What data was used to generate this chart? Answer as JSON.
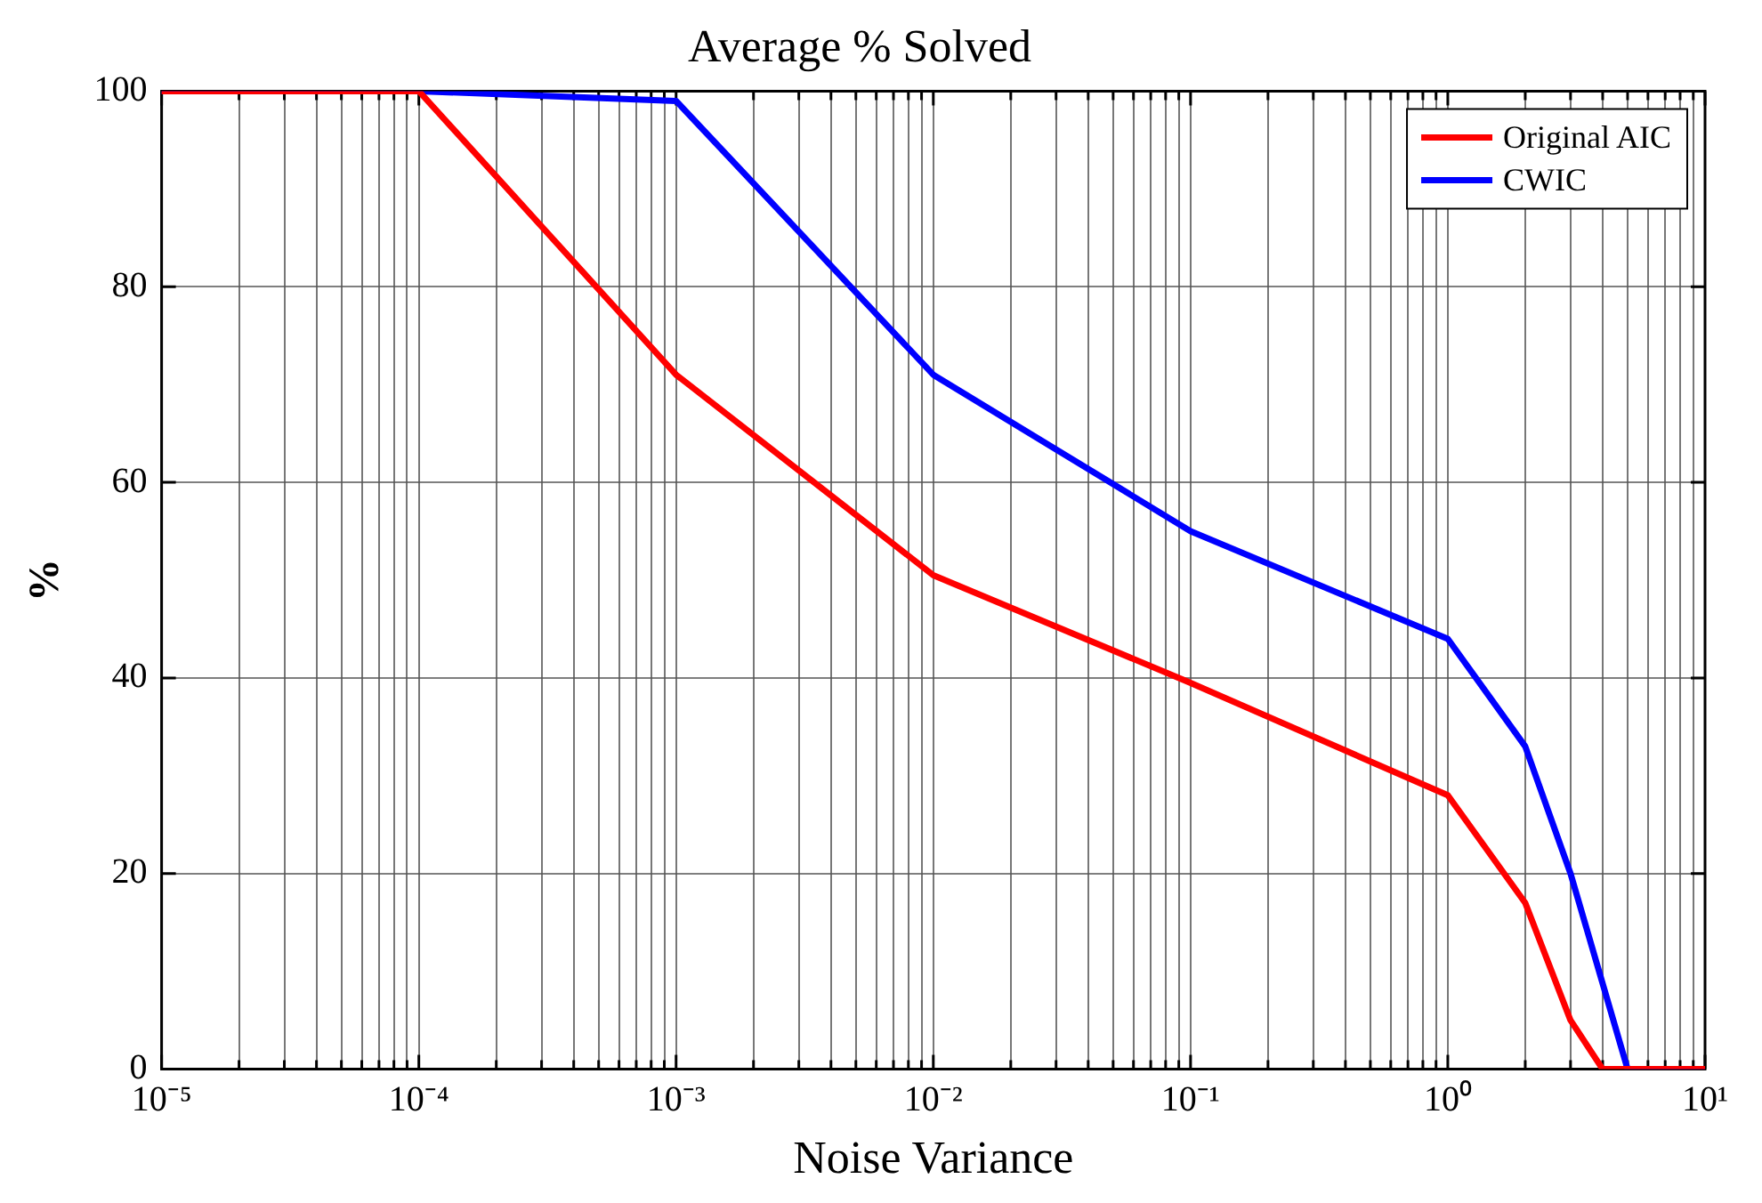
{
  "chart_data": {
    "type": "line",
    "title": "Average % Solved",
    "xlabel": "Noise Variance",
    "ylabel": "%",
    "log": "x",
    "grid": true,
    "legend": "top right",
    "marker": "none",
    "line_style": "solid",
    "xlim": [
      1e-05,
      10
    ],
    "xticks": [
      {
        "value": 1e-05,
        "label": "10⁻⁵"
      },
      {
        "value": 2e-05,
        "label": null
      },
      {
        "value": 3e-05,
        "label": null
      },
      {
        "value": 4e-05,
        "label": null
      },
      {
        "value": 5e-05,
        "label": null
      },
      {
        "value": 6e-05,
        "label": null
      },
      {
        "value": 7e-05,
        "label": null
      },
      {
        "value": 8e-05,
        "label": null
      },
      {
        "value": 9e-05,
        "label": null
      },
      {
        "value": 0.0001,
        "label": "10⁻⁴"
      },
      {
        "value": 0.0002,
        "label": null
      },
      {
        "value": 0.0003,
        "label": null
      },
      {
        "value": 0.0004,
        "label": null
      },
      {
        "value": 0.0005,
        "label": null
      },
      {
        "value": 0.0006,
        "label": null
      },
      {
        "value": 0.0007,
        "label": null
      },
      {
        "value": 0.0008,
        "label": null
      },
      {
        "value": 0.0009,
        "label": null
      },
      {
        "value": 0.001,
        "label": "10⁻³"
      },
      {
        "value": 0.002,
        "label": null
      },
      {
        "value": 0.003,
        "label": null
      },
      {
        "value": 0.004,
        "label": null
      },
      {
        "value": 0.005,
        "label": null
      },
      {
        "value": 0.006,
        "label": null
      },
      {
        "value": 0.007,
        "label": null
      },
      {
        "value": 0.008,
        "label": null
      },
      {
        "value": 0.009,
        "label": null
      },
      {
        "value": 0.01,
        "label": "10⁻²"
      },
      {
        "value": 0.02,
        "label": null
      },
      {
        "value": 0.03,
        "label": null
      },
      {
        "value": 0.04,
        "label": null
      },
      {
        "value": 0.05,
        "label": null
      },
      {
        "value": 0.06,
        "label": null
      },
      {
        "value": 0.07,
        "label": null
      },
      {
        "value": 0.08,
        "label": null
      },
      {
        "value": 0.09,
        "label": null
      },
      {
        "value": 0.1,
        "label": "10⁻¹"
      },
      {
        "value": 0.2,
        "label": null
      },
      {
        "value": 0.3,
        "label": null
      },
      {
        "value": 0.4,
        "label": null
      },
      {
        "value": 0.5,
        "label": null
      },
      {
        "value": 0.6,
        "label": null
      },
      {
        "value": 0.7,
        "label": null
      },
      {
        "value": 0.8,
        "label": null
      },
      {
        "value": 0.9,
        "label": null
      },
      {
        "value": 1,
        "label": "10⁰"
      },
      {
        "value": 2,
        "label": null
      },
      {
        "value": 3,
        "label": null
      },
      {
        "value": 4,
        "label": null
      },
      {
        "value": 5,
        "label": null
      },
      {
        "value": 6,
        "label": null
      },
      {
        "value": 7,
        "label": null
      },
      {
        "value": 8,
        "label": null
      },
      {
        "value": 9,
        "label": null
      },
      {
        "value": 10,
        "label": "10¹"
      }
    ],
    "ylim": [
      0,
      100
    ],
    "yticks": [
      0,
      20,
      40,
      60,
      80,
      100
    ],
    "series": [
      {
        "name": "Original AIC",
        "color": "#ff0000",
        "x": [
          1e-05,
          0.0001,
          0.001,
          0.01,
          0.1,
          1,
          2,
          3,
          4,
          10
        ],
        "values": [
          100,
          100,
          71,
          50.5,
          39.5,
          28,
          17,
          5,
          0,
          0
        ]
      },
      {
        "name": "CWIC",
        "color": "#0000ff",
        "x": [
          1e-05,
          0.0001,
          0.001,
          0.01,
          0.1,
          1,
          2,
          3,
          5,
          10
        ],
        "values": [
          100,
          100,
          99,
          71,
          55,
          44,
          33,
          20,
          0,
          0
        ]
      }
    ]
  }
}
